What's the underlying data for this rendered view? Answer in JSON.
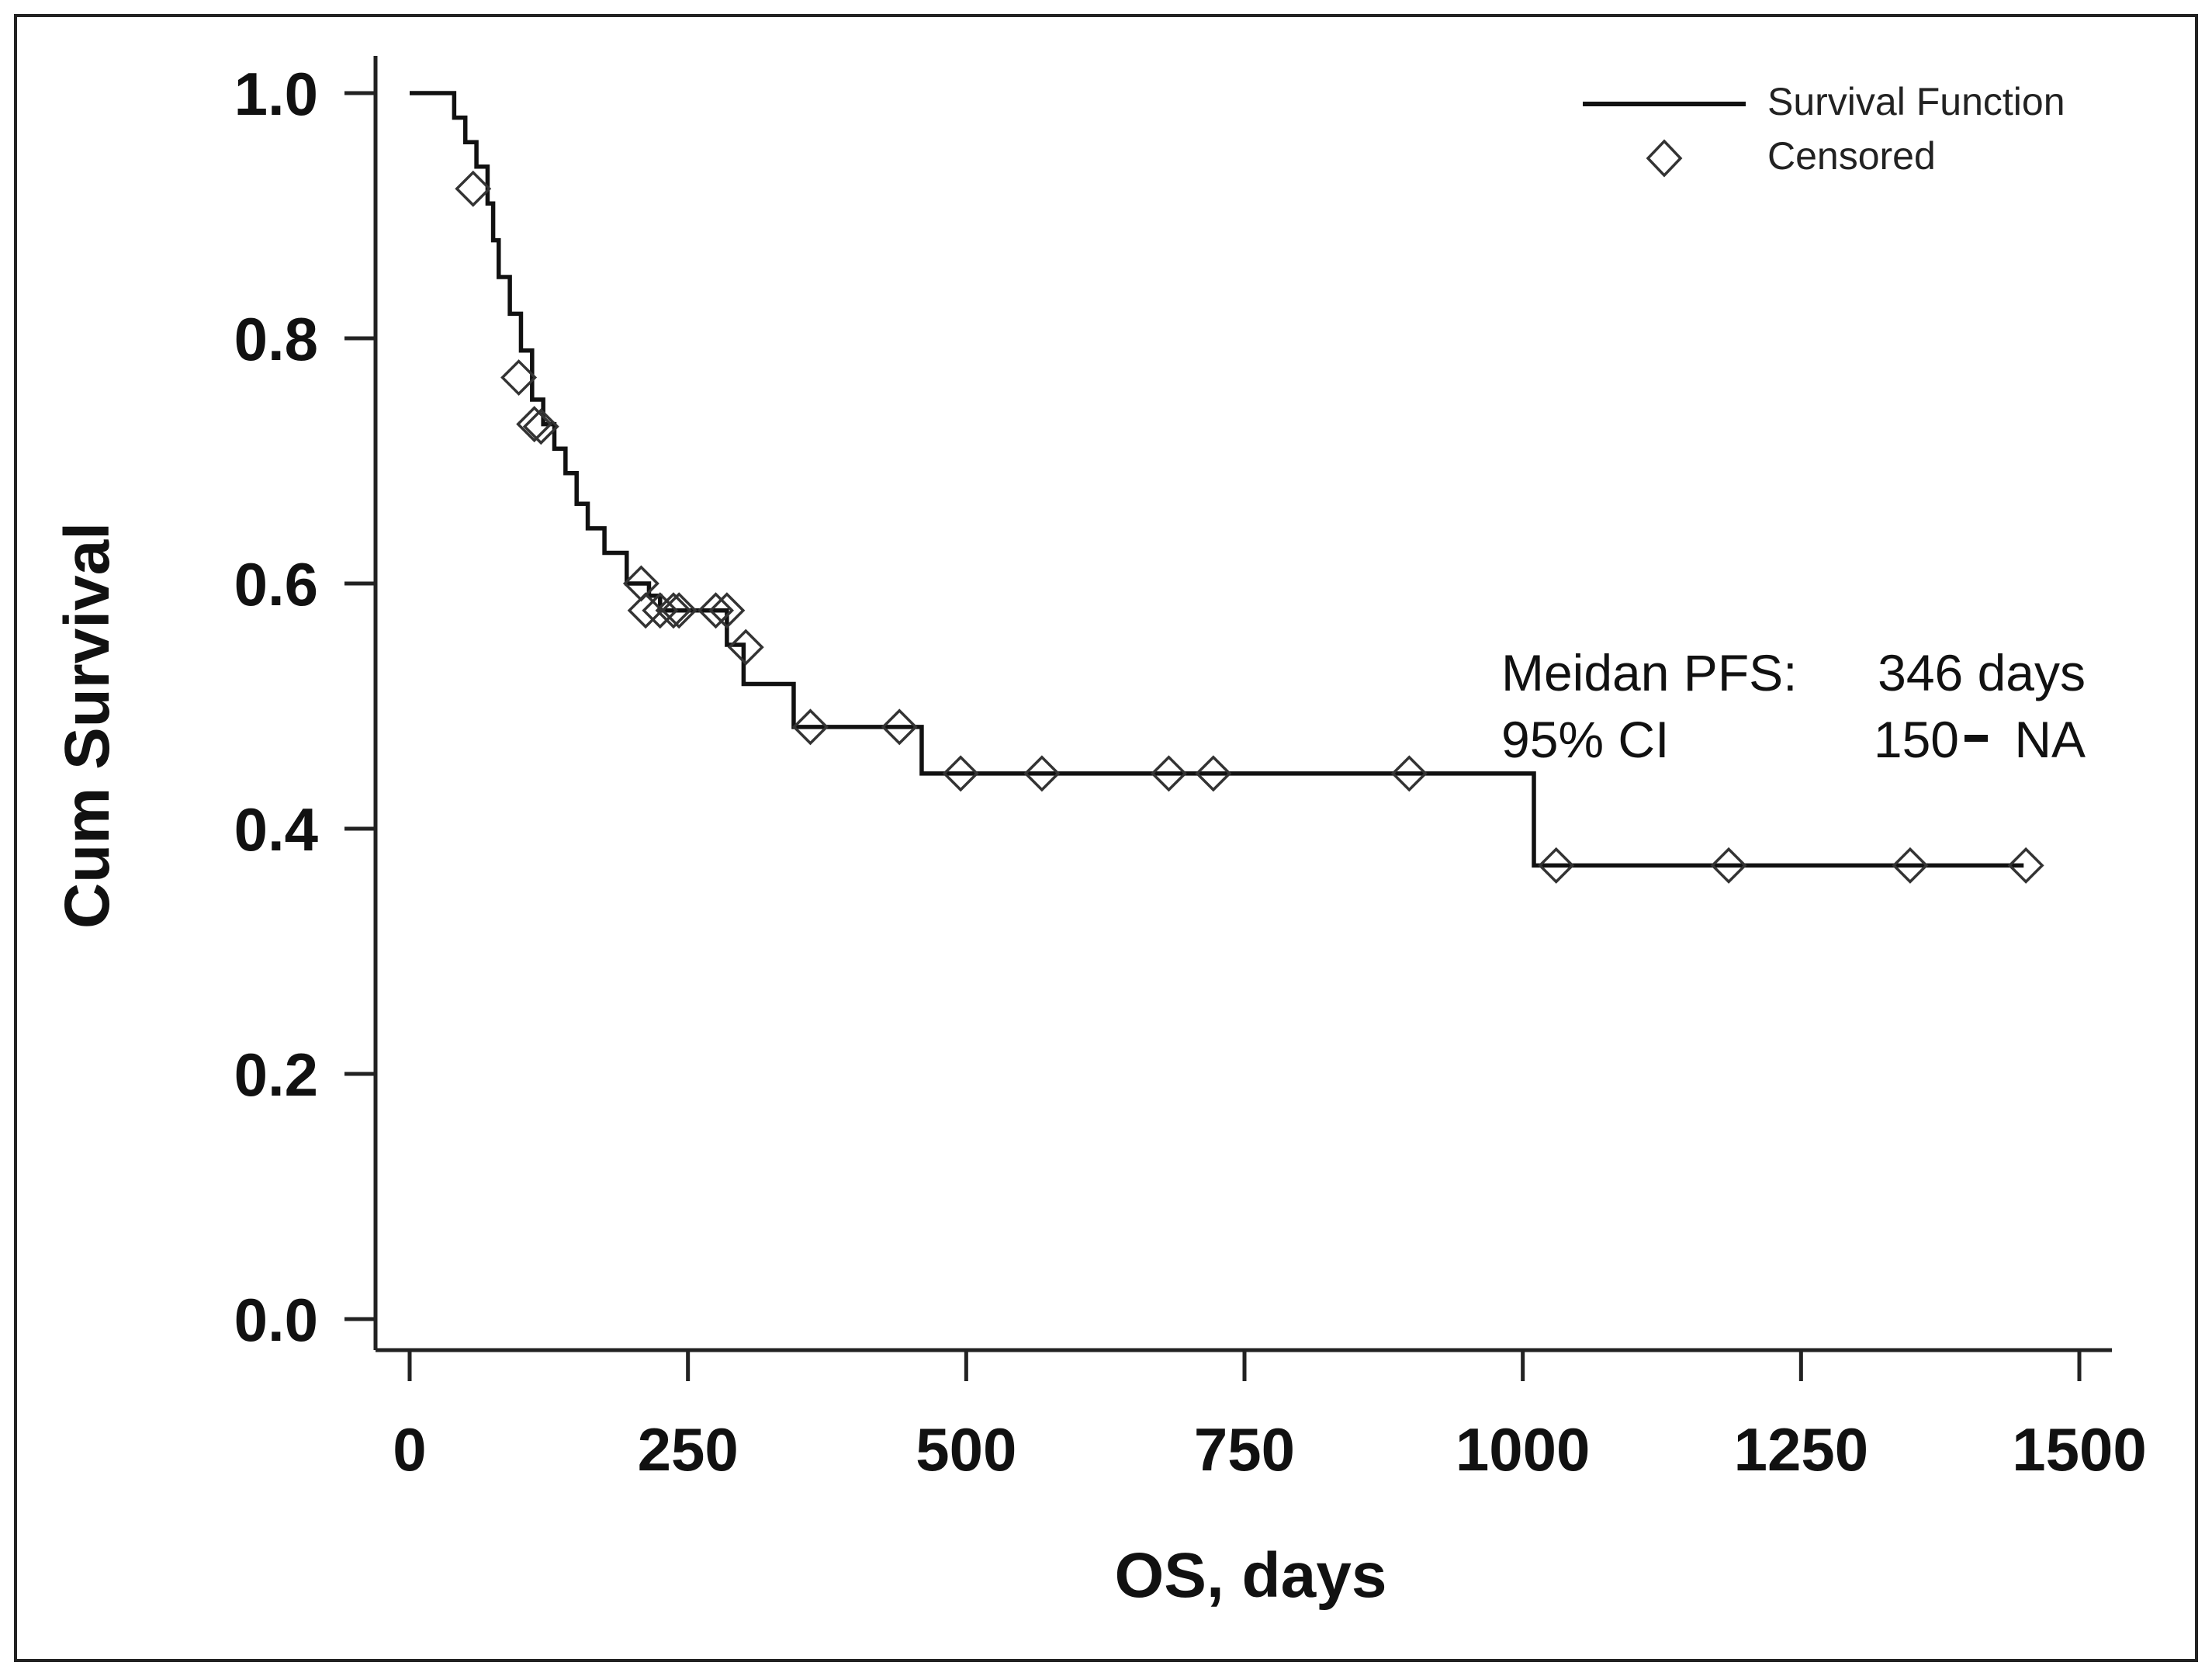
{
  "chart_data": {
    "type": "line",
    "title": "",
    "xlabel": "OS, days",
    "ylabel": "Cum Survival",
    "xlim": [
      0,
      1500
    ],
    "ylim": [
      0,
      1
    ],
    "xticks": [
      0,
      250,
      500,
      750,
      1000,
      1250,
      1500
    ],
    "xtick_labels": [
      "0",
      "250",
      "500",
      "750",
      "1000",
      "1250",
      "1500"
    ],
    "yticks": [
      0,
      0.2,
      0.4,
      0.6,
      0.8,
      1.0
    ],
    "ytick_labels": [
      "0.0",
      "0.2",
      "0.4",
      "0.6",
      "0.8",
      "1.0"
    ],
    "grid": false,
    "legend": {
      "placement": "top-right",
      "entries": [
        "Survival Function",
        "Censored"
      ]
    },
    "series": [
      {
        "name": "Survival Function",
        "style": "step",
        "x": [
          0,
          20,
          40,
          50,
          60,
          70,
          75,
          80,
          90,
          100,
          110,
          120,
          130,
          140,
          150,
          160,
          175,
          195,
          215,
          225,
          285,
          300,
          345,
          460,
          1010,
          1450
        ],
        "y": [
          1.0,
          1.0,
          0.98,
          0.96,
          0.94,
          0.91,
          0.88,
          0.85,
          0.82,
          0.79,
          0.75,
          0.73,
          0.71,
          0.69,
          0.665,
          0.645,
          0.625,
          0.6,
          0.59,
          0.578,
          0.55,
          0.518,
          0.483,
          0.445,
          0.37,
          0.37
        ]
      },
      {
        "name": "Censored",
        "style": "marker",
        "marker": "diamond",
        "x": [
          57,
          98,
          112,
          118,
          208,
          212,
          225,
          237,
          242,
          275,
          285,
          302,
          360,
          440,
          495,
          568,
          682,
          722,
          898,
          1030,
          1185,
          1348,
          1452
        ],
        "y": [
          0.922,
          0.768,
          0.73,
          0.728,
          0.6,
          0.578,
          0.578,
          0.578,
          0.578,
          0.578,
          0.578,
          0.548,
          0.483,
          0.483,
          0.445,
          0.445,
          0.445,
          0.445,
          0.445,
          0.37,
          0.37,
          0.37,
          0.37
        ]
      }
    ],
    "annotations": [
      {
        "label": "Meidan PFS:",
        "value": "346 days"
      },
      {
        "label": "95% CI",
        "value_start": "150",
        "value_end": "NA"
      }
    ]
  },
  "colors": {
    "line": "#111111",
    "marker": "#333333",
    "frame": "#222222",
    "text": "#111111"
  }
}
